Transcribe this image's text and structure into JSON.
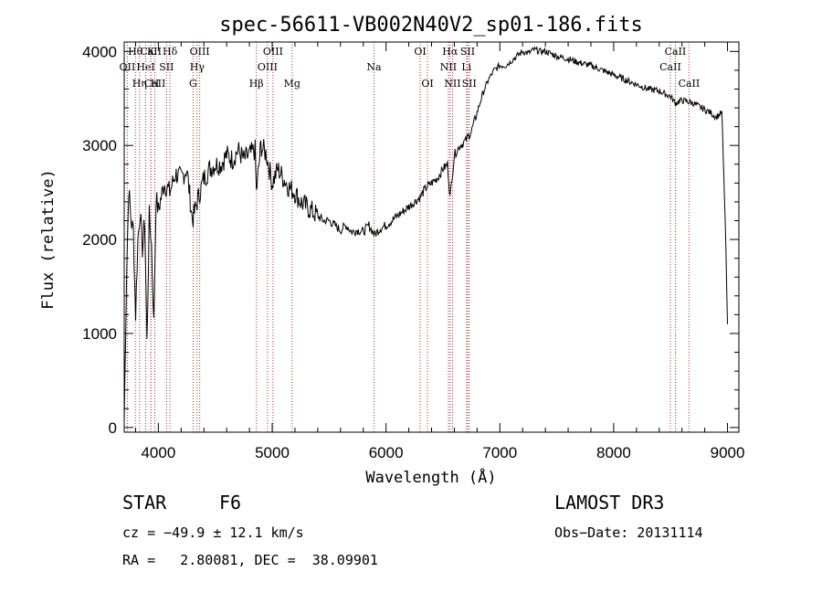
{
  "chart_data": {
    "type": "line",
    "title": "spec-56611-VB002N40V2_sp01-186.fits",
    "xlabel": "Wavelength (Å)",
    "ylabel": "Flux (relative)",
    "xlim": [
      3700,
      9100
    ],
    "ylim": [
      -50,
      4100
    ],
    "x_ticks": [
      4000,
      5000,
      6000,
      7000,
      8000,
      9000
    ],
    "y_ticks": [
      0,
      1000,
      2000,
      3000,
      4000
    ],
    "series": [
      {
        "name": "flux",
        "x": [
          3700,
          3720,
          3740,
          3760,
          3780,
          3800,
          3820,
          3840,
          3860,
          3880,
          3900,
          3920,
          3940,
          3960,
          3980,
          4000,
          4050,
          4100,
          4150,
          4200,
          4250,
          4300,
          4340,
          4400,
          4450,
          4500,
          4550,
          4600,
          4650,
          4700,
          4750,
          4800,
          4850,
          4861,
          4900,
          4950,
          5000,
          5050,
          5100,
          5150,
          5200,
          5250,
          5300,
          5350,
          5400,
          5450,
          5500,
          5550,
          5600,
          5650,
          5700,
          5750,
          5800,
          5850,
          5900,
          5950,
          6000,
          6050,
          6100,
          6150,
          6200,
          6250,
          6300,
          6350,
          6400,
          6450,
          6500,
          6540,
          6563,
          6600,
          6650,
          6700,
          6750,
          6800,
          6850,
          6900,
          6950,
          7000,
          7050,
          7100,
          7150,
          7200,
          7250,
          7300,
          7350,
          7400,
          7500,
          7600,
          7700,
          7800,
          7900,
          8000,
          8100,
          8200,
          8300,
          8400,
          8500,
          8542,
          8600,
          8700,
          8800,
          8850,
          8900,
          8950,
          8980,
          9000
        ],
        "values": [
          60,
          1600,
          2550,
          2200,
          2100,
          1200,
          2000,
          2300,
          1900,
          2200,
          900,
          2250,
          1950,
          1100,
          2450,
          2300,
          2600,
          2500,
          2700,
          2650,
          2750,
          2200,
          2400,
          2650,
          2750,
          2800,
          2800,
          2900,
          2850,
          2950,
          2850,
          2900,
          2950,
          2500,
          3000,
          2900,
          2600,
          2750,
          2650,
          2550,
          2500,
          2400,
          2350,
          2300,
          2250,
          2200,
          2200,
          2150,
          2100,
          2150,
          2080,
          2100,
          2080,
          2150,
          2050,
          2120,
          2150,
          2200,
          2250,
          2300,
          2350,
          2400,
          2450,
          2550,
          2600,
          2650,
          2750,
          2800,
          2450,
          2900,
          3000,
          3050,
          3150,
          3350,
          3550,
          3700,
          3800,
          3850,
          3850,
          3900,
          3950,
          4000,
          3980,
          4020,
          4000,
          4000,
          3950,
          3920,
          3880,
          3850,
          3800,
          3750,
          3700,
          3650,
          3600,
          3580,
          3520,
          3450,
          3480,
          3450,
          3380,
          3350,
          3300,
          3350,
          2200,
          1100
        ]
      }
    ],
    "spectral_lines": [
      {
        "name": "Hθ",
        "wavelength": 3798,
        "row": 0
      },
      {
        "name": "OII",
        "wavelength": 3727,
        "row": 1
      },
      {
        "name": "CaII",
        "wavelength": 3934,
        "row": 0
      },
      {
        "name": "CaII",
        "wavelength": 3969,
        "row": 2
      },
      {
        "name": "Hη",
        "wavelength": 3835,
        "row": 2
      },
      {
        "name": "HeI",
        "wavelength": 3889,
        "row": 1
      },
      {
        "name": "K",
        "wavelength": 3934,
        "row": 0
      },
      {
        "name": "H",
        "wavelength": 3969,
        "row": 2
      },
      {
        "name": "Hδ",
        "wavelength": 4102,
        "row": 0
      },
      {
        "name": "SII",
        "wavelength": 4072,
        "row": 1
      },
      {
        "name": "G",
        "wavelength": 4305,
        "row": 2
      },
      {
        "name": "Hγ",
        "wavelength": 4341,
        "row": 1
      },
      {
        "name": "OIII",
        "wavelength": 4363,
        "row": 0
      },
      {
        "name": "Hβ",
        "wavelength": 4861,
        "row": 2
      },
      {
        "name": "OIII",
        "wavelength": 4959,
        "row": 1
      },
      {
        "name": "OIII",
        "wavelength": 5007,
        "row": 0
      },
      {
        "name": "Mg",
        "wavelength": 5175,
        "row": 2
      },
      {
        "name": "Na",
        "wavelength": 5894,
        "row": 1
      },
      {
        "name": "OI",
        "wavelength": 6300,
        "row": 0
      },
      {
        "name": "OI",
        "wavelength": 6364,
        "row": 2
      },
      {
        "name": "NII",
        "wavelength": 6548,
        "row": 1
      },
      {
        "name": "Hα",
        "wavelength": 6563,
        "row": 0
      },
      {
        "name": "NII",
        "wavelength": 6584,
        "row": 2
      },
      {
        "name": "SII",
        "wavelength": 6717,
        "row": 0
      },
      {
        "name": "Li",
        "wavelength": 6707,
        "row": 1
      },
      {
        "name": "SII",
        "wavelength": 6731,
        "row": 2
      },
      {
        "name": "CaII",
        "wavelength": 8498,
        "row": 1
      },
      {
        "name": "CaII",
        "wavelength": 8542,
        "row": 0
      },
      {
        "name": "CaII",
        "wavelength": 8662,
        "row": 2
      }
    ]
  },
  "info": {
    "class": "STAR",
    "subclass": "F6",
    "survey": "LAMOST DR3",
    "cz": "cz = −49.9 ± 12.1 km/s",
    "obs_date": "Obs−Date: 20131114",
    "radec": "RA =   2.80081, DEC =  38.09901"
  },
  "colors": {
    "line": "#000000",
    "marker": "#b03030"
  }
}
